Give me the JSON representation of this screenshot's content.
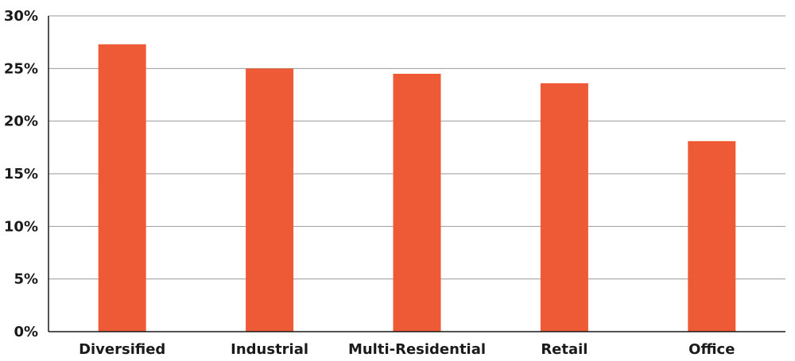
{
  "chart_data": {
    "type": "bar",
    "title": "",
    "xlabel": "",
    "ylabel": "",
    "categories": [
      "Diversified",
      "Industrial",
      "Multi-Residential",
      "Retail",
      "Office"
    ],
    "values": [
      27.3,
      25.0,
      24.5,
      23.6,
      18.1
    ],
    "ylim": [
      0,
      30
    ],
    "yticks": [
      0,
      5,
      10,
      15,
      20,
      25,
      30
    ],
    "ytick_labels": [
      "0%",
      "5%",
      "10%",
      "15%",
      "20%",
      "25%",
      "30%"
    ],
    "value_unit": "%",
    "grid": true,
    "legend": "none",
    "bar_color": "#EF5A36"
  }
}
